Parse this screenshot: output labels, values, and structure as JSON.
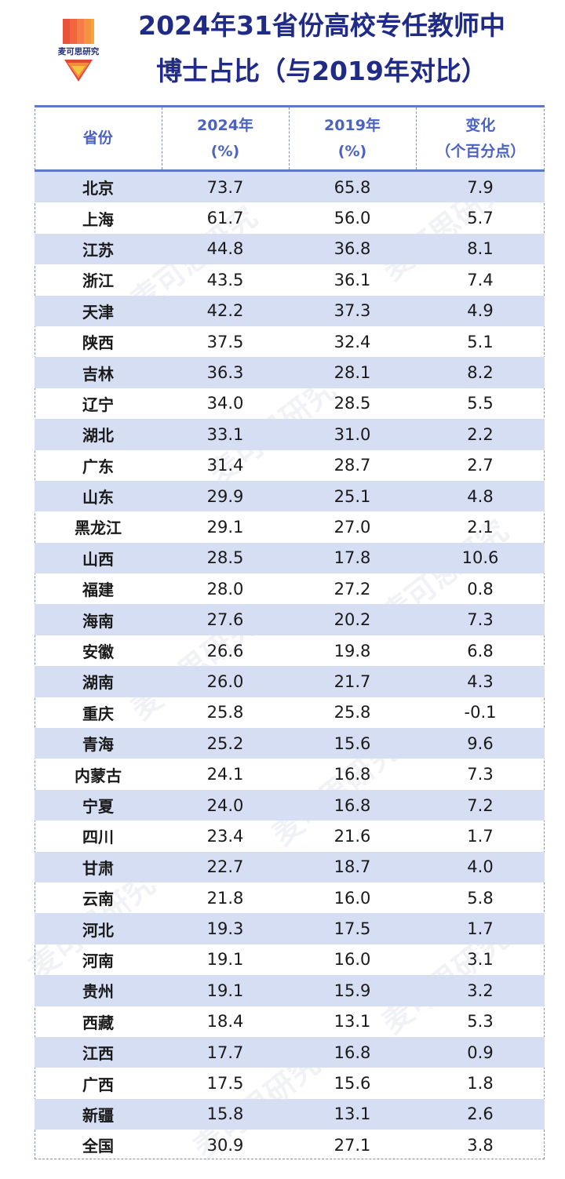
{
  "logo": {
    "text": "麦可思研究"
  },
  "title": {
    "line1": "2024年31省份高校专任教师中",
    "line2": "博士占比（与2019年对比）"
  },
  "table": {
    "headers": [
      {
        "line1": "省份",
        "line2": ""
      },
      {
        "line1": "2024年",
        "line2": "(%)"
      },
      {
        "line1": "2019年",
        "line2": "(%)"
      },
      {
        "line1": "变化",
        "line2": "（个百分点）"
      }
    ],
    "rows": [
      [
        "北京",
        "73.7",
        "65.8",
        "7.9"
      ],
      [
        "上海",
        "61.7",
        "56.0",
        "5.7"
      ],
      [
        "江苏",
        "44.8",
        "36.8",
        "8.1"
      ],
      [
        "浙江",
        "43.5",
        "36.1",
        "7.4"
      ],
      [
        "天津",
        "42.2",
        "37.3",
        "4.9"
      ],
      [
        "陕西",
        "37.5",
        "32.4",
        "5.1"
      ],
      [
        "吉林",
        "36.3",
        "28.1",
        "8.2"
      ],
      [
        "辽宁",
        "34.0",
        "28.5",
        "5.5"
      ],
      [
        "湖北",
        "33.1",
        "31.0",
        "2.2"
      ],
      [
        "广东",
        "31.4",
        "28.7",
        "2.7"
      ],
      [
        "山东",
        "29.9",
        "25.1",
        "4.8"
      ],
      [
        "黑龙江",
        "29.1",
        "27.0",
        "2.1"
      ],
      [
        "山西",
        "28.5",
        "17.8",
        "10.6"
      ],
      [
        "福建",
        "28.0",
        "27.2",
        "0.8"
      ],
      [
        "海南",
        "27.6",
        "20.2",
        "7.3"
      ],
      [
        "安徽",
        "26.6",
        "19.8",
        "6.8"
      ],
      [
        "湖南",
        "26.0",
        "21.7",
        "4.3"
      ],
      [
        "重庆",
        "25.8",
        "25.8",
        "-0.1"
      ],
      [
        "青海",
        "25.2",
        "15.6",
        "9.6"
      ],
      [
        "内蒙古",
        "24.1",
        "16.8",
        "7.3"
      ],
      [
        "宁夏",
        "24.0",
        "16.8",
        "7.2"
      ],
      [
        "四川",
        "23.4",
        "21.6",
        "1.7"
      ],
      [
        "甘肃",
        "22.7",
        "18.7",
        "4.0"
      ],
      [
        "云南",
        "21.8",
        "16.0",
        "5.8"
      ],
      [
        "河北",
        "19.3",
        "17.5",
        "1.7"
      ],
      [
        "河南",
        "19.1",
        "16.0",
        "3.1"
      ],
      [
        "贵州",
        "19.1",
        "15.9",
        "3.2"
      ],
      [
        "西藏",
        "18.4",
        "13.1",
        "5.3"
      ],
      [
        "江西",
        "17.7",
        "16.8",
        "0.9"
      ],
      [
        "广西",
        "17.5",
        "15.6",
        "1.8"
      ],
      [
        "新疆",
        "15.8",
        "13.1",
        "2.6"
      ],
      [
        "全国",
        "30.9",
        "27.1",
        "3.8"
      ]
    ]
  },
  "colors": {
    "title": "#1f2b86",
    "header": "#4a63c3",
    "band": "#d5def2",
    "rule": "#5b79c7"
  }
}
